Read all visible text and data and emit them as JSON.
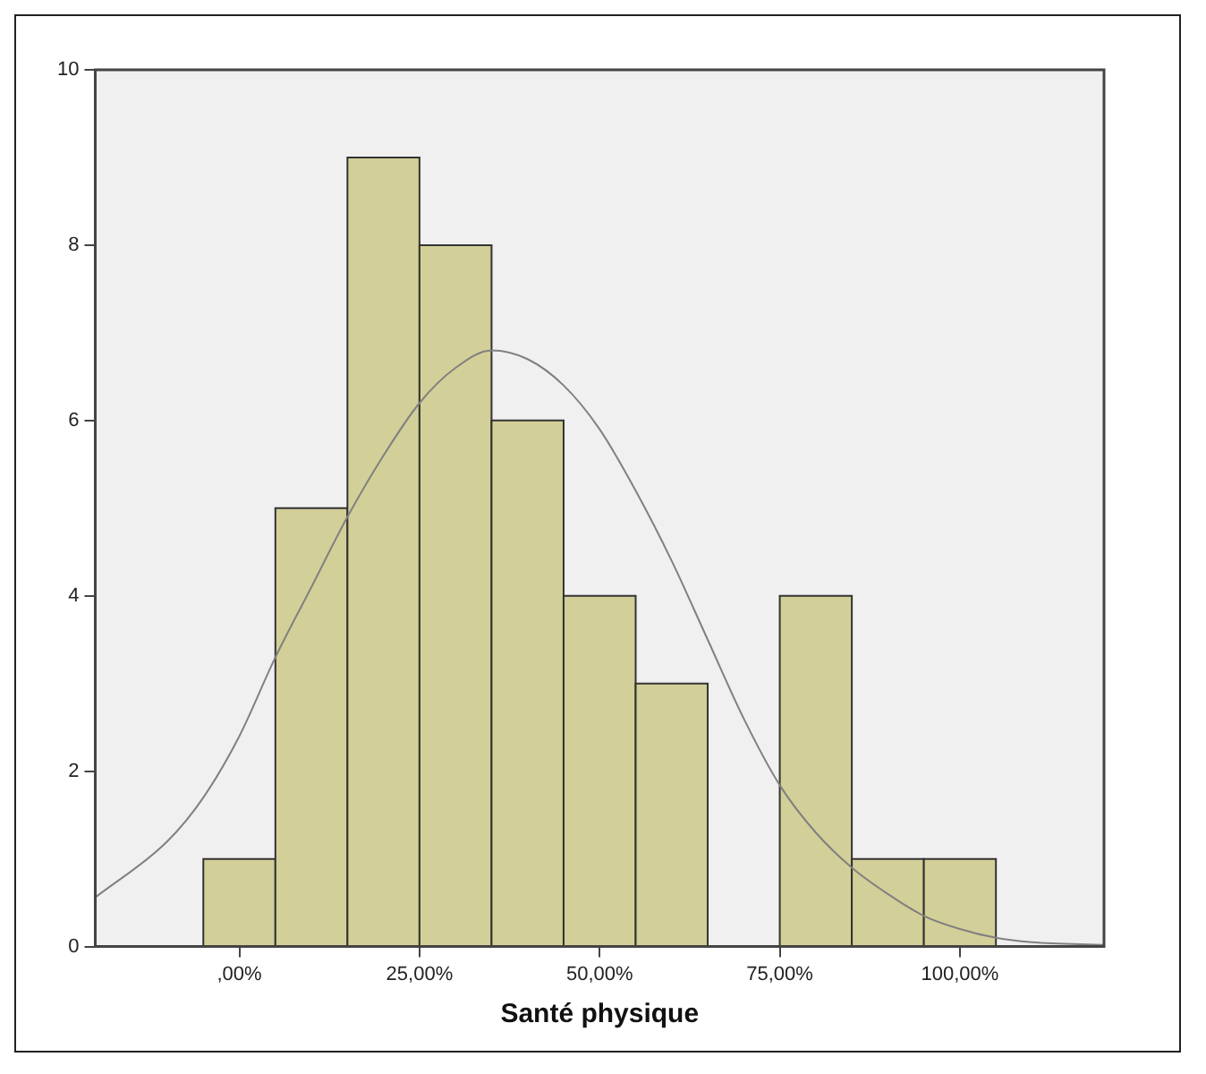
{
  "chart_data": {
    "type": "histogram",
    "xlabel": "Santé physique",
    "bins": [
      -5,
      5,
      15,
      25,
      35,
      45,
      55,
      65,
      75,
      85,
      95,
      105
    ],
    "values": [
      1,
      5,
      9,
      8,
      6,
      4,
      3,
      0,
      4,
      1,
      1
    ],
    "color": "#d3cf98",
    "series": [
      {
        "type": "line",
        "color": "#808080",
        "x": [
          -20,
          -10,
          -5,
          0,
          5,
          10,
          15,
          20,
          25,
          30,
          35,
          40,
          45,
          50,
          55,
          60,
          65,
          70,
          75,
          80,
          85,
          90,
          95,
          100,
          105,
          110,
          120
        ],
        "values": [
          0.56,
          1.2,
          1.7,
          2.4,
          3.3,
          4.1,
          4.9,
          5.6,
          6.2,
          6.6,
          6.8,
          6.7,
          6.4,
          5.9,
          5.2,
          4.4,
          3.5,
          2.6,
          1.84,
          1.3,
          0.9,
          0.6,
          0.35,
          0.2,
          0.1,
          0.05,
          0.02
        ]
      }
    ],
    "xlim": [
      -20,
      120
    ],
    "xticks": [
      {
        "value": 0,
        "label": ",00%"
      },
      {
        "value": 25,
        "label": "25,00%"
      },
      {
        "value": 50,
        "label": "50,00%"
      },
      {
        "value": 75,
        "label": "75,00%"
      },
      {
        "value": 100,
        "label": "100,00%"
      }
    ],
    "ylim": [
      0,
      10
    ],
    "yticks": [
      0,
      2,
      4,
      6,
      8,
      10
    ],
    "grid": false,
    "legend": false
  }
}
